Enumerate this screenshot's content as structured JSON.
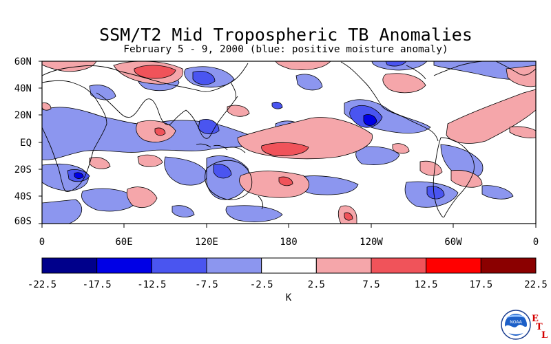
{
  "title": "SSM/T2 Mid Tropospheric TB Anomalies",
  "subtitle": "February 5 - 9, 2000 (blue: positive moisture anomaly)",
  "lat_labels": [
    "60N",
    "40N",
    "20N",
    "EQ",
    "20S",
    "40S",
    "60S"
  ],
  "lon_labels": [
    "0",
    "60E",
    "120E",
    "180",
    "120W",
    "60W",
    "0"
  ],
  "colorbar": {
    "labels": [
      "-22.5",
      "-17.5",
      "-12.5",
      "-7.5",
      "-2.5",
      "2.5",
      "7.5",
      "12.5",
      "17.5",
      "22.5"
    ],
    "colors": [
      "#00008b",
      "#0000e6",
      "#4a55f0",
      "#8c96ef",
      "#ffffff",
      "#f5a6aa",
      "#f0535a",
      "#ff0000",
      "#8b0000"
    ],
    "unit": "K"
  },
  "logo": {
    "letters": [
      "E",
      "T",
      "L"
    ],
    "seal_text": "NOAA"
  }
}
